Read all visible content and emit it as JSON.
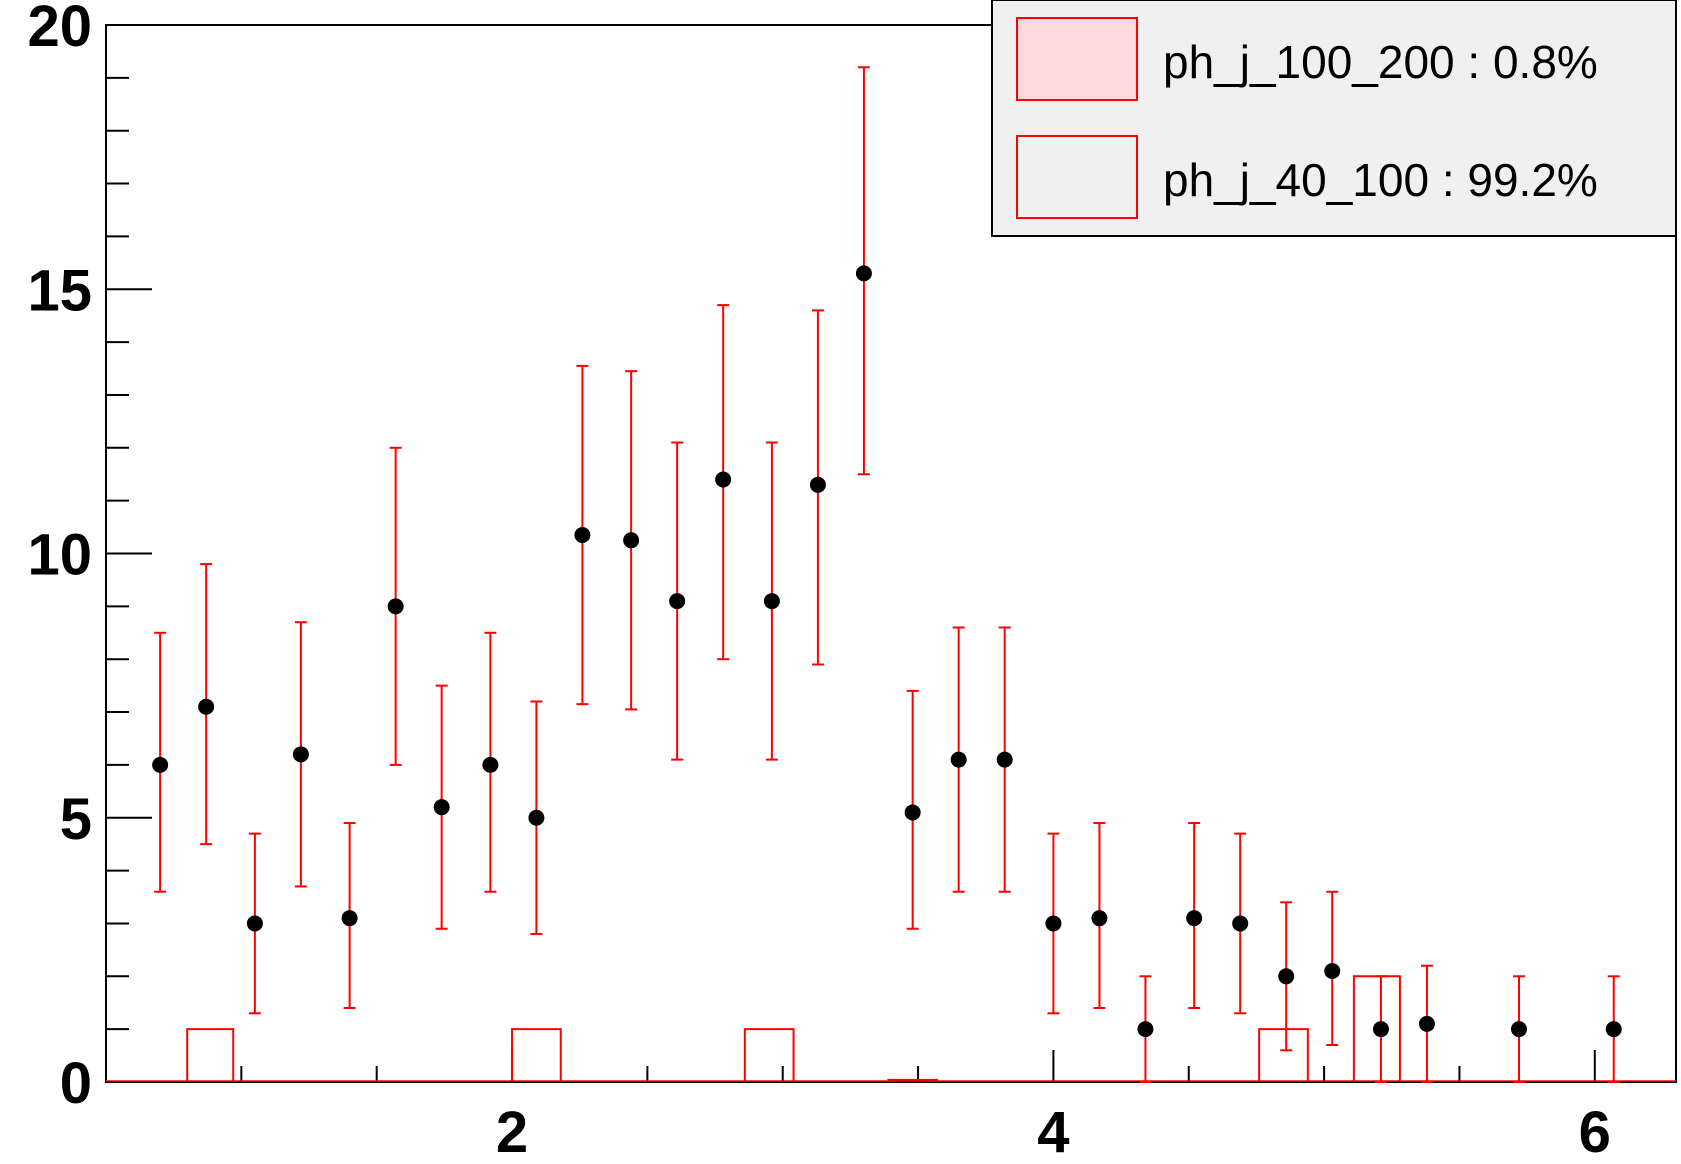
{
  "chart_data": {
    "type": "scatter",
    "title": "",
    "xlabel": "",
    "ylabel": "",
    "xlim": [
      0.5,
      6.3
    ],
    "ylim": [
      0,
      20
    ],
    "x_ticks": [
      2,
      4,
      6
    ],
    "y_ticks": [
      0,
      5,
      10,
      15,
      20
    ],
    "x_tick_labels": [
      "2",
      "4",
      "6"
    ],
    "y_tick_labels": [
      "0",
      "5",
      "10",
      "15",
      "20"
    ],
    "grid": false,
    "data_points": [
      {
        "x": 0.7,
        "y": 6.0,
        "err_low": 2.4,
        "err_high": 2.5
      },
      {
        "x": 0.87,
        "y": 7.1,
        "err_low": 2.6,
        "err_high": 2.7
      },
      {
        "x": 1.05,
        "y": 3.0,
        "err_low": 1.7,
        "err_high": 1.7
      },
      {
        "x": 1.22,
        "y": 6.2,
        "err_low": 2.5,
        "err_high": 2.5
      },
      {
        "x": 1.4,
        "y": 3.1,
        "err_low": 1.7,
        "err_high": 1.8
      },
      {
        "x": 1.57,
        "y": 9.0,
        "err_low": 3.0,
        "err_high": 3.0
      },
      {
        "x": 1.74,
        "y": 5.2,
        "err_low": 2.3,
        "err_high": 2.3
      },
      {
        "x": 1.92,
        "y": 6.0,
        "err_low": 2.4,
        "err_high": 2.5
      },
      {
        "x": 2.09,
        "y": 5.0,
        "err_low": 2.2,
        "err_high": 2.2
      },
      {
        "x": 2.26,
        "y": 10.35,
        "err_low": 3.2,
        "err_high": 3.2
      },
      {
        "x": 2.44,
        "y": 10.25,
        "err_low": 3.2,
        "err_high": 3.2
      },
      {
        "x": 2.61,
        "y": 9.1,
        "err_low": 3.0,
        "err_high": 3.0
      },
      {
        "x": 2.78,
        "y": 11.4,
        "err_low": 3.4,
        "err_high": 3.3
      },
      {
        "x": 2.96,
        "y": 9.1,
        "err_low": 3.0,
        "err_high": 3.0
      },
      {
        "x": 3.13,
        "y": 11.3,
        "err_low": 3.4,
        "err_high": 3.3
      },
      {
        "x": 3.3,
        "y": 15.3,
        "err_low": 3.8,
        "err_high": 3.9
      },
      {
        "x": 3.48,
        "y": 5.1,
        "err_low": 2.2,
        "err_high": 2.3
      },
      {
        "x": 3.65,
        "y": 6.1,
        "err_low": 2.5,
        "err_high": 2.5
      },
      {
        "x": 3.82,
        "y": 6.1,
        "err_low": 2.5,
        "err_high": 2.5
      },
      {
        "x": 4.0,
        "y": 3.0,
        "err_low": 1.7,
        "err_high": 1.7
      },
      {
        "x": 4.17,
        "y": 3.1,
        "err_low": 1.7,
        "err_high": 1.8
      },
      {
        "x": 4.34,
        "y": 1.0,
        "err_low": 1.0,
        "err_high": 1.0
      },
      {
        "x": 4.52,
        "y": 3.1,
        "err_low": 1.7,
        "err_high": 1.8
      },
      {
        "x": 4.69,
        "y": 3.0,
        "err_low": 1.7,
        "err_high": 1.7
      },
      {
        "x": 4.86,
        "y": 2.0,
        "err_low": 1.4,
        "err_high": 1.4
      },
      {
        "x": 5.03,
        "y": 2.1,
        "err_low": 1.4,
        "err_high": 1.5
      },
      {
        "x": 5.21,
        "y": 1.0,
        "err_low": 1.0,
        "err_high": 1.0
      },
      {
        "x": 5.38,
        "y": 1.1,
        "err_low": 1.1,
        "err_high": 1.1
      },
      {
        "x": 5.72,
        "y": 1.0,
        "err_low": 1.0,
        "err_high": 1.0
      },
      {
        "x": 6.07,
        "y": 1.0,
        "err_low": 1.0,
        "err_high": 1.0
      }
    ],
    "histogram_bins": [
      {
        "x_low": 0.8,
        "x_high": 0.97,
        "value": 1
      },
      {
        "x_low": 2.0,
        "x_high": 2.18,
        "value": 1
      },
      {
        "x_low": 2.86,
        "x_high": 3.04,
        "value": 1
      },
      {
        "x_low": 3.39,
        "x_high": 3.57,
        "value": 0.04
      },
      {
        "x_low": 4.76,
        "x_high": 4.94,
        "value": 1
      },
      {
        "x_low": 5.11,
        "x_high": 5.28,
        "value": 2
      }
    ],
    "colors": {
      "points": "#000000",
      "error_bars": "#ff0000",
      "histogram": "#ff0000",
      "legend_fill_1": "#ffd9d9",
      "legend_bg": "#f0f0f0"
    },
    "legend": {
      "placement": "top-right",
      "entries": [
        {
          "label": "ph_j_100_200 : 0.8%",
          "style": "filled"
        },
        {
          "label": "ph_j_40_100 : 99.2%",
          "style": "hollow"
        }
      ]
    }
  }
}
